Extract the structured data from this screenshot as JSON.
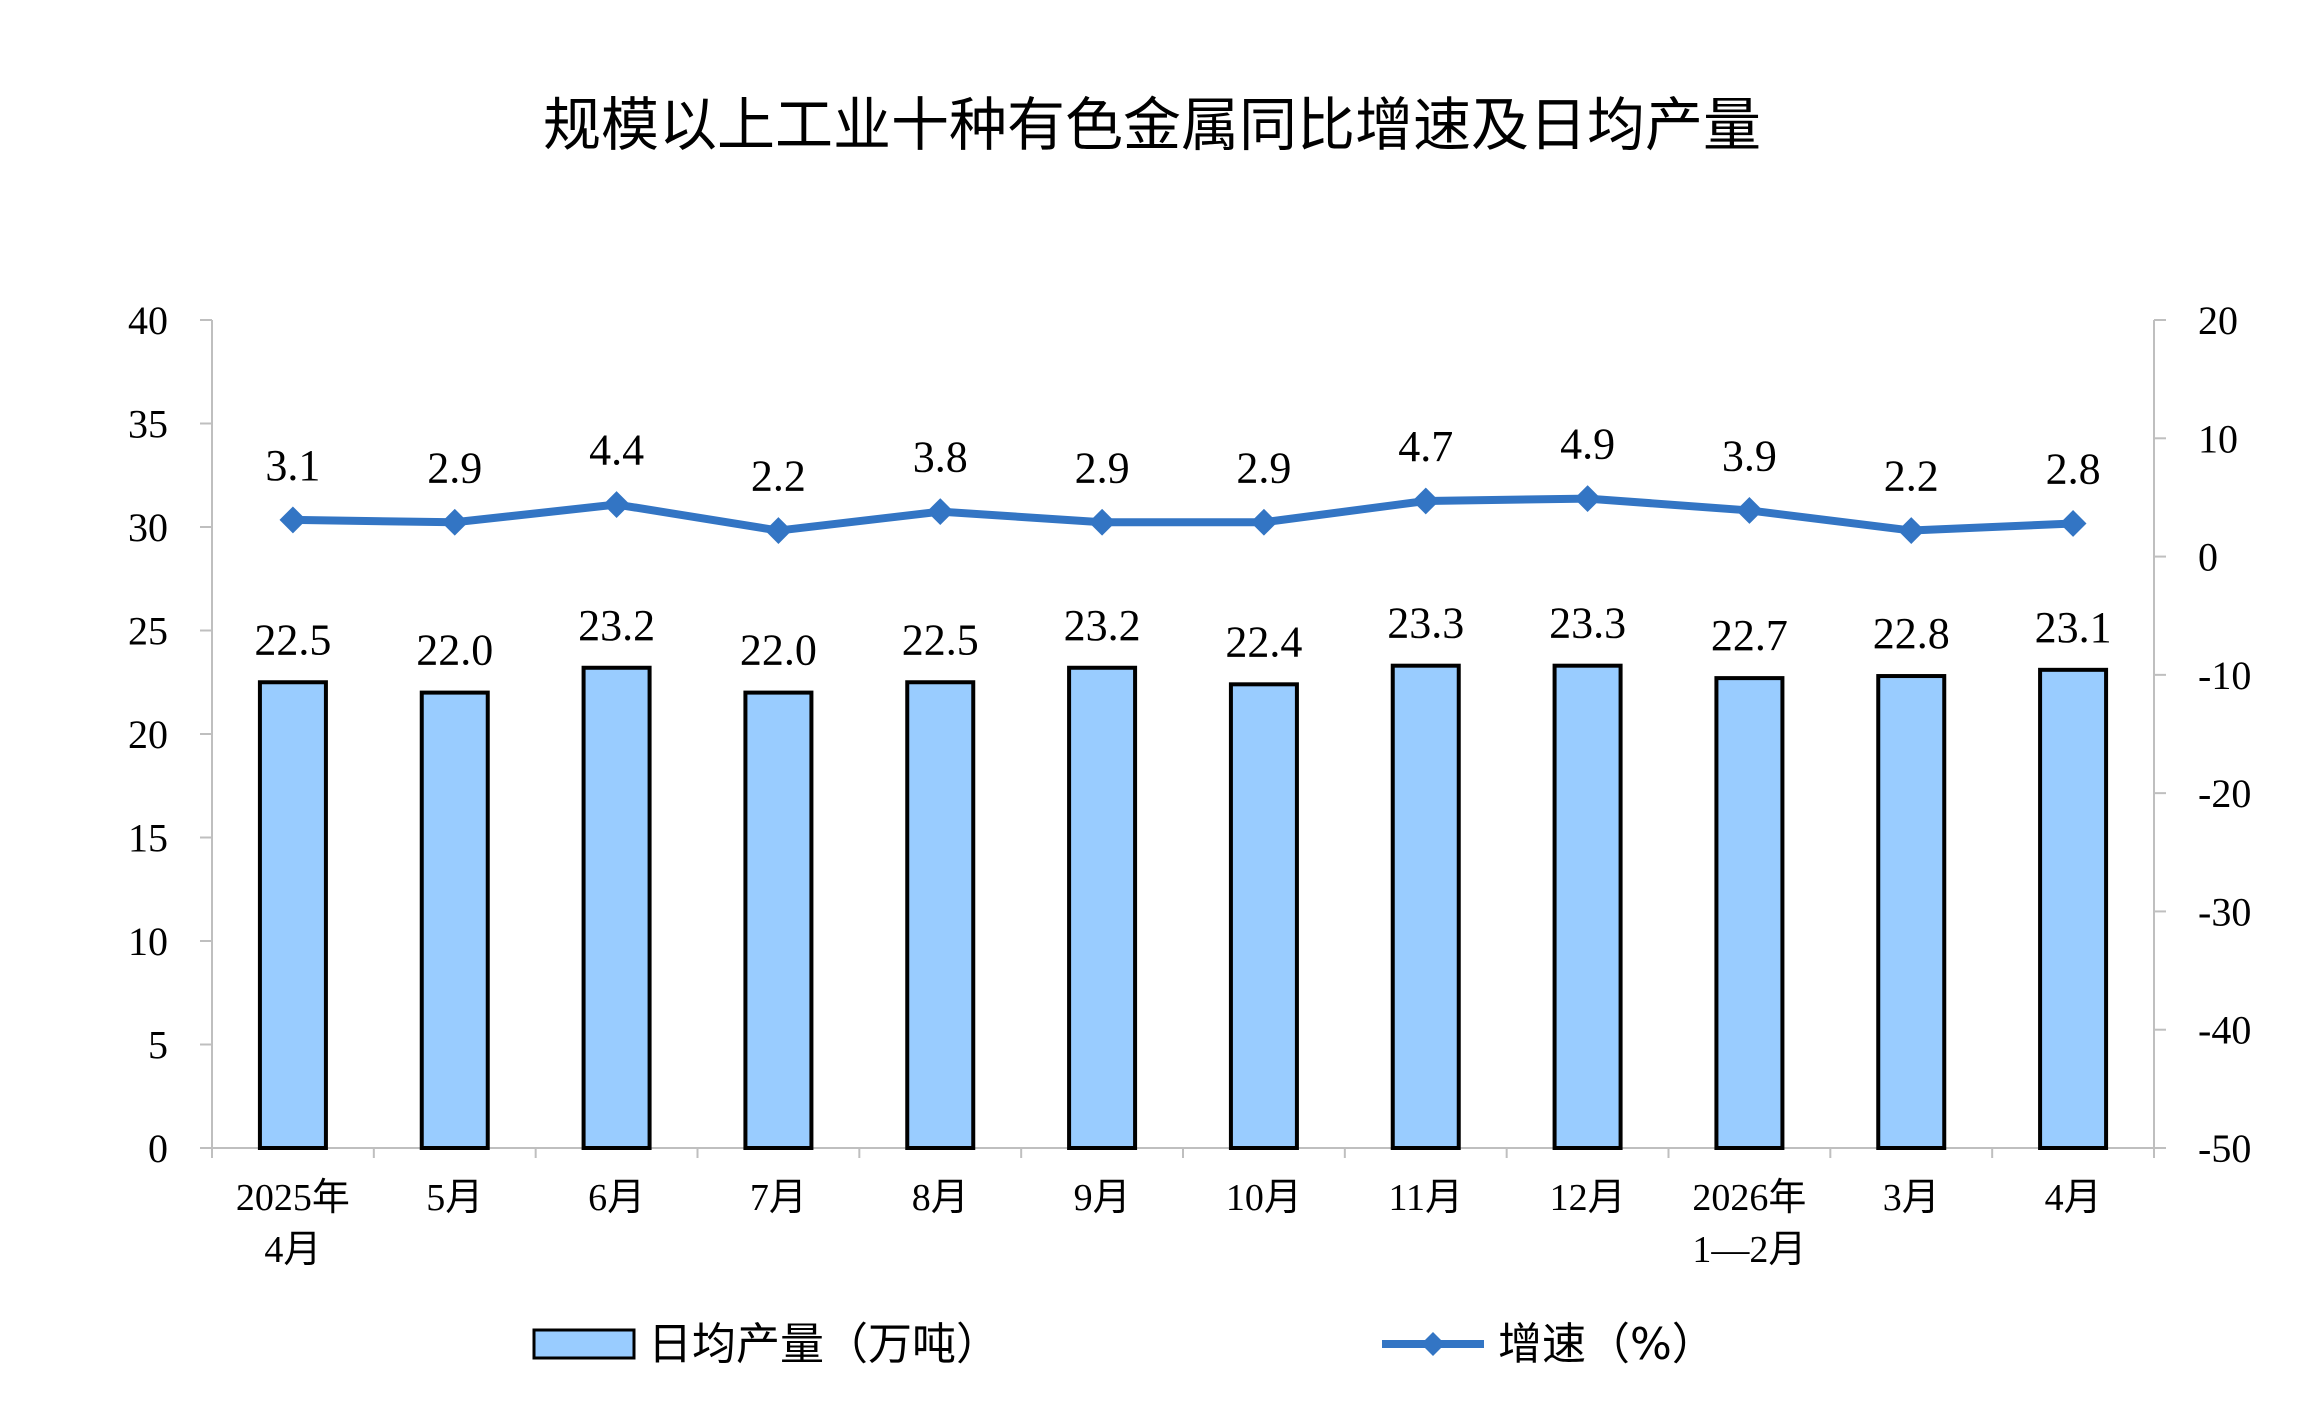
{
  "chart_data": {
    "type": "bar",
    "title": "规模以上工业十种有色金属同比增速及日均产量",
    "categories": [
      [
        "2025年",
        "4月"
      ],
      [
        "5月"
      ],
      [
        "6月"
      ],
      [
        "7月"
      ],
      [
        "8月"
      ],
      [
        "9月"
      ],
      [
        "10月"
      ],
      [
        "11月"
      ],
      [
        "12月"
      ],
      [
        "2026年",
        "1—2月"
      ],
      [
        "3月"
      ],
      [
        "4月"
      ]
    ],
    "series": [
      {
        "name": "日均产量（万吨）",
        "type": "bar",
        "axis": "left",
        "color": "#99CCFF",
        "values": [
          22.5,
          22.0,
          23.2,
          22.0,
          22.5,
          23.2,
          22.4,
          23.3,
          23.3,
          22.7,
          22.8,
          23.1
        ],
        "labels": [
          "22.5",
          "22.0",
          "23.2",
          "22.0",
          "22.5",
          "23.2",
          "22.4",
          "23.3",
          "23.3",
          "22.7",
          "22.8",
          "23.1"
        ]
      },
      {
        "name": "增速（%）",
        "type": "line",
        "axis": "right",
        "color": "#3375C4",
        "marker": "diamond",
        "values": [
          3.1,
          2.9,
          4.4,
          2.2,
          3.8,
          2.9,
          2.9,
          4.7,
          4.9,
          3.9,
          2.2,
          2.8
        ],
        "labels": [
          "3.1",
          "2.9",
          "4.4",
          "2.2",
          "3.8",
          "2.9",
          "2.9",
          "4.7",
          "4.9",
          "3.9",
          "2.2",
          "2.8"
        ]
      }
    ],
    "y_left": {
      "min": 0,
      "max": 40,
      "step": 5,
      "ticks": [
        "0",
        "5",
        "10",
        "15",
        "20",
        "25",
        "30",
        "35",
        "40"
      ]
    },
    "y_right": {
      "min": -50,
      "max": 20,
      "step": 10,
      "ticks": [
        "-50",
        "-40",
        "-30",
        "-20",
        "-10",
        "0",
        "10",
        "20"
      ]
    },
    "legend_position": "bottom",
    "grid": false
  }
}
